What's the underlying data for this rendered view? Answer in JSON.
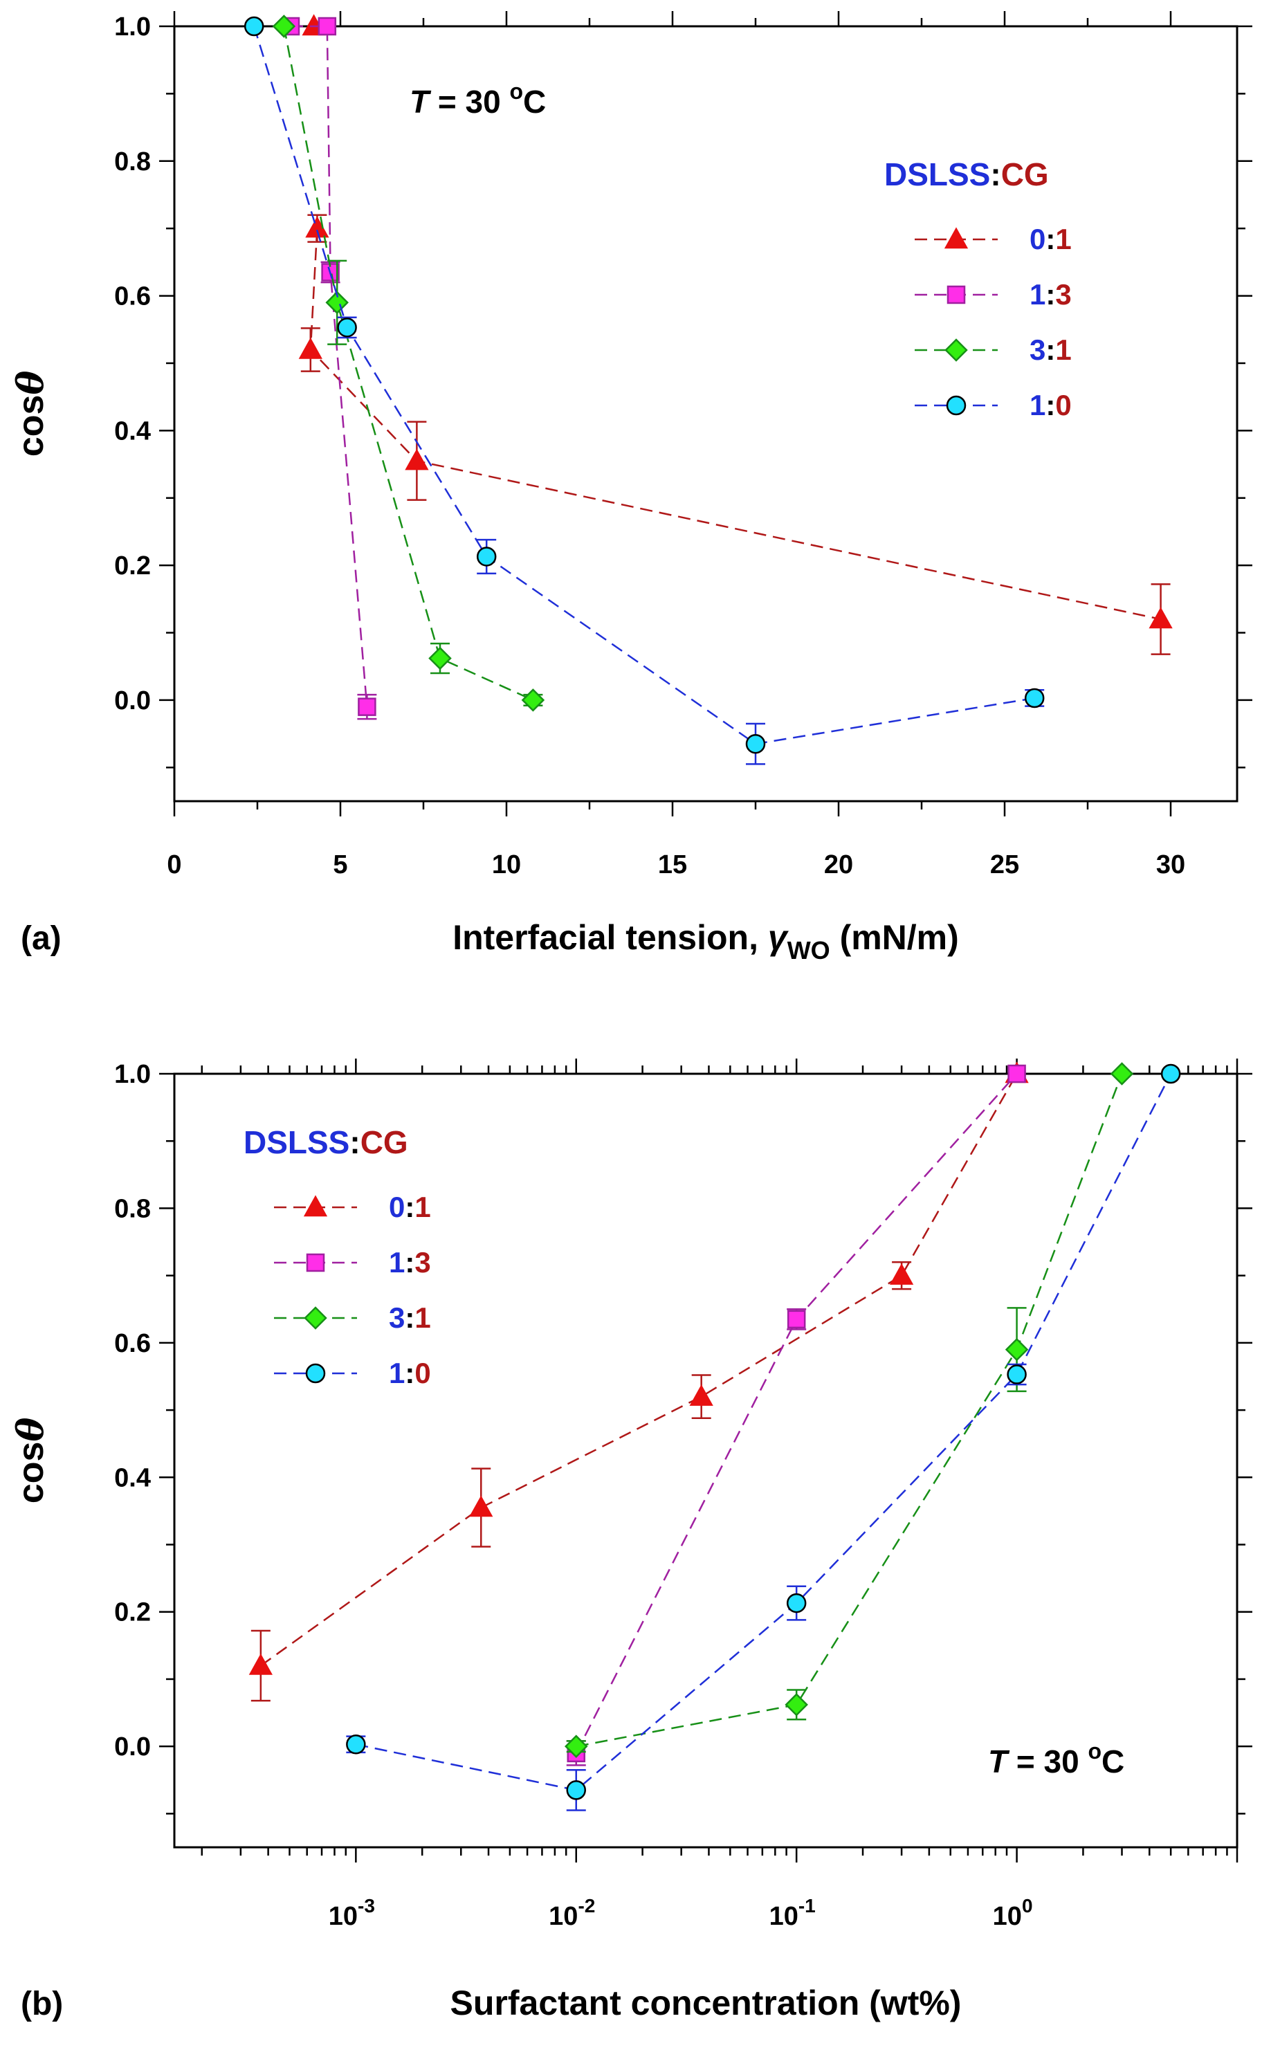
{
  "colors": {
    "dslss": "#1F2FD8",
    "cg": "#B01818",
    "series_lines": [
      "#B01818",
      "#A020A0",
      "#179017",
      "#1F2FD8"
    ],
    "series_fills": [
      "#E81010",
      "#FF2EE8",
      "#33EE10",
      "#22E0FF"
    ],
    "ref_line": "#000000"
  },
  "chart_data": [
    {
      "type": "scatter",
      "panel_label": "(a)",
      "xlabel": {
        "prefix": "Interfacial tension, ",
        "symbol": "γ",
        "subscript": "WO",
        "suffix": " (mN/m)"
      },
      "ylabel": {
        "text": "cos",
        "symbol": "θ"
      },
      "x_scale": "linear",
      "xlim": [
        0,
        32
      ],
      "ylim": [
        -0.15,
        1.0
      ],
      "x_ticks": [
        "0",
        "5",
        "10",
        "15",
        "20",
        "25",
        "30"
      ],
      "y_ticks": [
        "0.0",
        "0.2",
        "0.4",
        "0.6",
        "0.8",
        "1.0"
      ],
      "reference_line_y": 1.0,
      "annotation": {
        "symbol": "T",
        "text": " = 30 ",
        "superscript": "o",
        "unit": "C",
        "placement": "top-left"
      },
      "legend": {
        "title_a": "DSLSS",
        "separator": ":",
        "title_b": "CG",
        "placement": "right"
      },
      "series": [
        {
          "name": "0:1",
          "label_a": "0",
          "label_b": "1",
          "marker": "triangle",
          "x": [
            4.3,
            4.1,
            7.3,
            29.7
          ],
          "y": [
            0.7,
            0.52,
            0.355,
            0.12
          ],
          "err": [
            0.02,
            0.032,
            0.058,
            0.052
          ],
          "extra_points": [
            {
              "x": 4.2,
              "y": 1.0
            }
          ]
        },
        {
          "name": "1:3",
          "label_a": "1",
          "label_b": "3",
          "marker": "square",
          "x": [
            3.5,
            4.6,
            4.7,
            5.8
          ],
          "y": [
            1.0,
            1.0,
            0.635,
            -0.01
          ],
          "err": [
            0,
            0,
            0.015,
            0.018
          ]
        },
        {
          "name": "3:1",
          "label_a": "3",
          "label_b": "1",
          "marker": "diamond",
          "x": [
            3.3,
            4.9,
            8.0,
            10.8
          ],
          "y": [
            1.0,
            0.59,
            0.062,
            0.0
          ],
          "err": [
            0,
            0.062,
            0.022,
            0.008
          ]
        },
        {
          "name": "1:0",
          "label_a": "1",
          "label_b": "0",
          "marker": "circle",
          "x": [
            2.4,
            5.2,
            9.4,
            17.5,
            25.9
          ],
          "y": [
            1.0,
            0.553,
            0.213,
            -0.065,
            0.003
          ],
          "err": [
            0,
            0.015,
            0.025,
            0.03,
            0.012
          ]
        }
      ]
    },
    {
      "type": "scatter",
      "panel_label": "(b)",
      "xlabel": {
        "prefix": "Surfactant concentration (wt%)",
        "symbol": "",
        "subscript": "",
        "suffix": ""
      },
      "ylabel": {
        "text": "cos",
        "symbol": "θ"
      },
      "x_scale": "log",
      "xlim": [
        0.00015,
        10
      ],
      "ylim": [
        -0.15,
        1.0
      ],
      "x_ticks_log": [
        {
          "base": "10",
          "exp": "-3",
          "value": 0.001
        },
        {
          "base": "10",
          "exp": "-2",
          "value": 0.01
        },
        {
          "base": "10",
          "exp": "-1",
          "value": 0.1
        },
        {
          "base": "10",
          "exp": "0",
          "value": 1
        }
      ],
      "y_ticks": [
        "0.0",
        "0.2",
        "0.4",
        "0.6",
        "0.8",
        "1.0"
      ],
      "reference_line_y": 1.0,
      "annotation": {
        "symbol": "T",
        "text": " = 30 ",
        "superscript": "o",
        "unit": "C",
        "placement": "bottom-right"
      },
      "legend": {
        "title_a": "DSLSS",
        "separator": ":",
        "title_b": "CG",
        "placement": "top-left"
      },
      "series": [
        {
          "name": "0:1",
          "label_a": "0",
          "label_b": "1",
          "marker": "triangle",
          "x": [
            0.00037,
            0.0037,
            0.037,
            0.3,
            1.0
          ],
          "y": [
            0.12,
            0.355,
            0.52,
            0.7,
            1.0
          ],
          "err": [
            0.052,
            0.058,
            0.032,
            0.02,
            0
          ]
        },
        {
          "name": "1:3",
          "label_a": "1",
          "label_b": "3",
          "marker": "square",
          "x": [
            0.01,
            0.1,
            1.0
          ],
          "y": [
            -0.01,
            0.635,
            1.0
          ],
          "err": [
            0.018,
            0.015,
            0
          ]
        },
        {
          "name": "3:1",
          "label_a": "3",
          "label_b": "1",
          "marker": "diamond",
          "x": [
            0.01,
            0.1,
            1.0,
            3.0
          ],
          "y": [
            0.0,
            0.062,
            0.59,
            1.0
          ],
          "err": [
            0.008,
            0.022,
            0.062,
            0
          ]
        },
        {
          "name": "1:0",
          "label_a": "1",
          "label_b": "0",
          "marker": "circle",
          "x": [
            0.001,
            0.01,
            0.1,
            1.0,
            5.0
          ],
          "y": [
            0.003,
            -0.065,
            0.213,
            0.553,
            1.0
          ],
          "err": [
            0.012,
            0.03,
            0.025,
            0.015,
            0
          ]
        }
      ]
    }
  ]
}
